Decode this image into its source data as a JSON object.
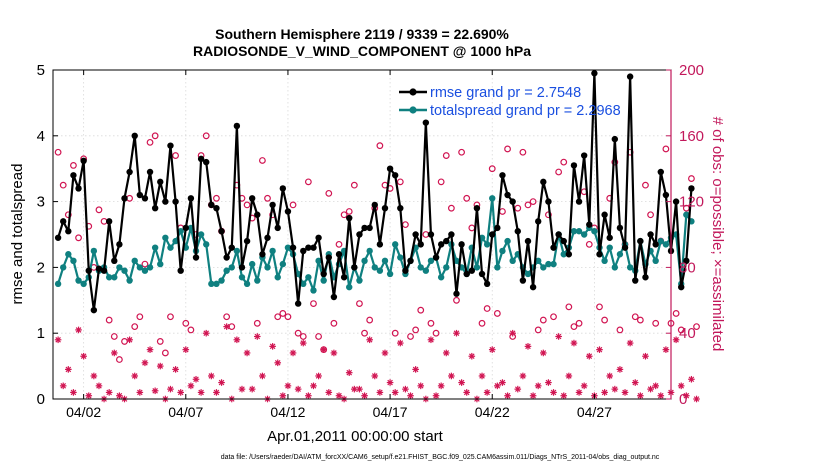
{
  "chart_data": {
    "type": "line",
    "title_line1": "Southern Hemisphere 2119 / 9339 = 22.690%",
    "title_line2": "RADIOSONDE_V_WIND_COMPONENT @ 1000 hPa",
    "xlabel": "Apr.01,2011 00:00:00 start",
    "ylabel_left": "rmse and totalspread",
    "ylabel_right": "# of obs: o=possible; ×=assimilated",
    "footer": "data file: /Users/raeder/DAI/ATM_forcXX/CAM6_setup/f.e21.FHIST_BGC.f09_025.CAM6assim.011/Diags_NTrS_2011-04/obs_diag_output.nc",
    "xlim": [
      0.5,
      30.75
    ],
    "ylim_left": [
      0,
      5
    ],
    "ylim_right": [
      0,
      200
    ],
    "x_ticks": [
      {
        "x": 2,
        "label": "04/02"
      },
      {
        "x": 7,
        "label": "04/07"
      },
      {
        "x": 12,
        "label": "04/12"
      },
      {
        "x": 17,
        "label": "04/17"
      },
      {
        "x": 22,
        "label": "04/22"
      },
      {
        "x": 27,
        "label": "04/27"
      }
    ],
    "y_ticks_left": [
      0,
      1,
      2,
      3,
      4,
      5
    ],
    "y_ticks_right": [
      0,
      40,
      80,
      120,
      160,
      200
    ],
    "colors": {
      "rmse": "#000000",
      "spread": "#0f8080",
      "obs": "#d11552",
      "legend_text": "#1a4fe0",
      "right_axis": "#c2185b"
    },
    "legend": [
      {
        "name": "rmse grand pr = 2.7548",
        "series": "rmse"
      },
      {
        "name": "totalspread grand pr = 2.2968",
        "series": "spread"
      }
    ],
    "x_start": 0.75,
    "x_step": 0.25,
    "series": [
      {
        "name": "rmse",
        "axis": "left",
        "values": [
          2.45,
          2.7,
          2.55,
          3.4,
          3.2,
          3.62,
          1.95,
          1.35,
          1.98,
          1.95,
          2.7,
          2.1,
          2.35,
          3.05,
          3.45,
          4.0,
          3.1,
          3.05,
          3.45,
          2.9,
          3.3,
          3.0,
          3.85,
          3.0,
          1.95,
          2.6,
          3.05,
          2.15,
          3.65,
          3.6,
          2.95,
          2.9,
          2.55,
          2.15,
          2.3,
          4.15,
          2.0,
          2.4,
          3.05,
          2.8,
          2.2,
          2.45,
          2.95,
          2.6,
          3.2,
          2.85,
          2.3,
          1.45,
          2.25,
          2.3,
          2.3,
          2.45,
          1.9,
          2.15,
          1.55,
          2.2,
          1.85,
          2.75,
          2.0,
          2.5,
          2.6,
          2.6,
          2.95,
          2.35,
          2.9,
          3.5,
          3.4,
          2.9,
          1.95,
          2.1,
          2.5,
          2.35,
          4.2,
          2.5,
          2.15,
          2.35,
          2.4,
          2.5,
          1.6,
          2.35,
          1.9,
          1.95,
          2.9,
          1.9,
          1.75,
          2.5,
          2.6,
          3.4,
          3.1,
          3.0,
          2.55,
          1.8,
          2.4,
          1.7,
          2.7,
          3.3,
          3.0,
          2.3,
          2.5,
          2.4,
          2.2,
          3.55,
          3.0,
          3.7,
          2.65,
          4.95,
          2.2,
          2.8,
          2.45,
          3.95,
          2.6,
          2.3,
          4.9,
          1.8,
          2.4,
          1.85,
          2.5,
          2.35,
          3.45,
          3.1,
          2.25,
          3.0,
          1.7,
          2.1,
          3.2
        ]
      },
      {
        "name": "totalspread",
        "axis": "left",
        "values": [
          1.75,
          2.0,
          2.2,
          2.1,
          1.8,
          1.75,
          1.85,
          2.25,
          1.95,
          2.0,
          1.85,
          1.85,
          2.0,
          1.95,
          1.8,
          2.1,
          2.0,
          1.95,
          2.0,
          2.3,
          2.05,
          2.45,
          2.3,
          2.4,
          2.55,
          2.3,
          2.6,
          2.25,
          2.5,
          2.35,
          1.75,
          1.75,
          1.8,
          1.95,
          2.0,
          2.25,
          1.85,
          1.75,
          2.05,
          1.8,
          2.15,
          2.0,
          2.25,
          1.85,
          2.05,
          2.3,
          2.2,
          1.9,
          1.75,
          1.85,
          1.65,
          2.1,
          1.8,
          2.2,
          1.85,
          2.05,
          2.25,
          1.7,
          2.0,
          1.8,
          2.1,
          2.25,
          2.0,
          1.95,
          2.1,
          1.9,
          2.35,
          2.15,
          1.9,
          2.1,
          2.3,
          2.0,
          1.95,
          2.1,
          2.15,
          1.85,
          2.0,
          2.35,
          2.1,
          2.0,
          1.9,
          2.3,
          2.0,
          2.45,
          2.35,
          3.05,
          2.0,
          2.25,
          2.4,
          2.1,
          2.2,
          2.0,
          1.9,
          2.0,
          2.1,
          2.0,
          2.05,
          2.05,
          2.5,
          2.2,
          2.3,
          2.55,
          2.55,
          2.5,
          2.6,
          2.55,
          2.3,
          2.1,
          2.3,
          2.0,
          2.2,
          2.35,
          2.0,
          1.95,
          2.4,
          2.05,
          2.25,
          2.1,
          2.4,
          2.35,
          2.45,
          2.5,
          1.75,
          2.8,
          2.7
        ]
      },
      {
        "name": "obs_possible",
        "axis": "right",
        "values": [
          150,
          130,
          112,
          142,
          98,
          146,
          105,
          80,
          115,
          108,
          48,
          38,
          24,
          35,
          122,
          44,
          50,
          82,
          156,
          160,
          35,
          28,
          50,
          148,
          104,
          46,
          42,
          100,
          148,
          160,
          118,
          122,
          102,
          50,
          44,
          130,
          122,
          118,
          110,
          46,
          145,
          122,
          112,
          50,
          52,
          50,
          118,
          40,
          38,
          132,
          58,
          38,
          30,
          125,
          46,
          94,
          112,
          114,
          130,
          58,
          40,
          48,
          116,
          154,
          130,
          128,
          40,
          132,
          106,
          38,
          42,
          54,
          100,
          46,
          40,
          132,
          148,
          116,
          60,
          150,
          122,
          104,
          118,
          46,
          55,
          140,
          52,
          114,
          152,
          38,
          116,
          150,
          118,
          120,
          42,
          48,
          112,
          50,
          138,
          144,
          56,
          44,
          46,
          126,
          94,
          104,
          56,
          48,
          122,
          144,
          42,
          94,
          150,
          50,
          48,
          130,
          112,
          46,
          96,
          152,
          46,
          52,
          42,
          116,
          134,
          44
        ]
      },
      {
        "name": "obs_assimilated",
        "axis": "right",
        "values": [
          36,
          8,
          18,
          4,
          42,
          26,
          2,
          14,
          8,
          0,
          4,
          28,
          2,
          0,
          36,
          14,
          4,
          22,
          30,
          5,
          20,
          0,
          6,
          18,
          4,
          30,
          8,
          12,
          4,
          40,
          14,
          4,
          10,
          44,
          0,
          36,
          6,
          28,
          6,
          38,
          14,
          0,
          32,
          22,
          2,
          8,
          28,
          6,
          34,
          2,
          8,
          14,
          30,
          4,
          28,
          2,
          0,
          16,
          6,
          6,
          2,
          36,
          14,
          4,
          28,
          10,
          4,
          34,
          6,
          2,
          18,
          8,
          0,
          36,
          2,
          8,
          28,
          14,
          40,
          10,
          4,
          26,
          0,
          14,
          4,
          30,
          8,
          10,
          2,
          40,
          6,
          14,
          32,
          2,
          8,
          28,
          10,
          4,
          38,
          2,
          14,
          34,
          4,
          8,
          26,
          2,
          30,
          4,
          14,
          6,
          18,
          4,
          34,
          10,
          2,
          26,
          6,
          8,
          2,
          30,
          4,
          36,
          8,
          2,
          12,
          0
        ]
      }
    ]
  }
}
